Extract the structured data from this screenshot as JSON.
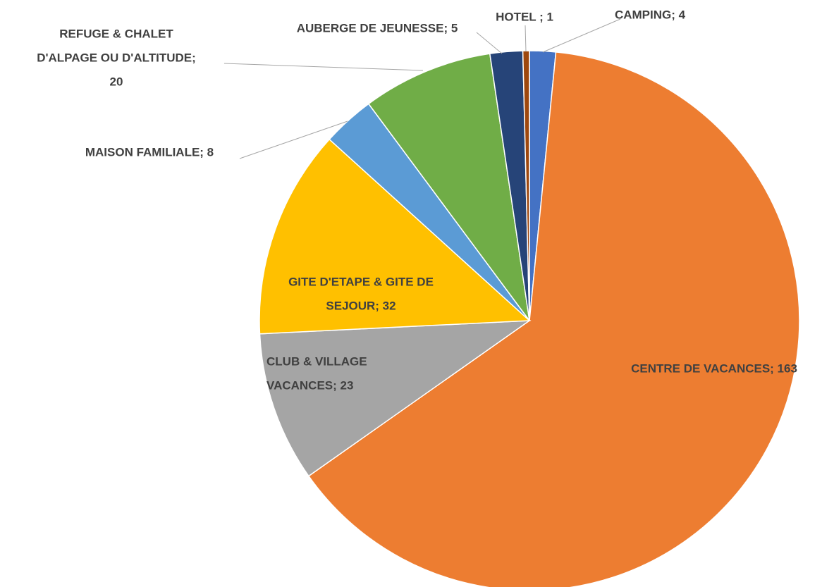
{
  "chart_data": {
    "type": "pie",
    "values": [
      4,
      163,
      23,
      32,
      8,
      20,
      5,
      1
    ],
    "value_labels": [
      [
        "CAMPING; 4"
      ],
      [
        "CENTRE DE VACANCES; 163"
      ],
      [
        "CLUB & VILLAGE",
        "VACANCES; 23"
      ],
      [
        "GITE D'ETAPE & GITE DE",
        "SEJOUR; 32"
      ],
      [
        "MAISON FAMILIALE; 8"
      ],
      [
        "REFUGE & CHALET",
        "D'ALPAGE OU D'ALTITUDE;",
        "20"
      ],
      [
        "AUBERGE DE JEUNESSE; 5"
      ],
      [
        "HOTEL ; 1"
      ]
    ],
    "colors": [
      "#4472c4",
      "#ed7d31",
      "#a5a5a5",
      "#ffc000",
      "#5b9bd5",
      "#70ad47",
      "#264478",
      "#9e480e"
    ]
  }
}
